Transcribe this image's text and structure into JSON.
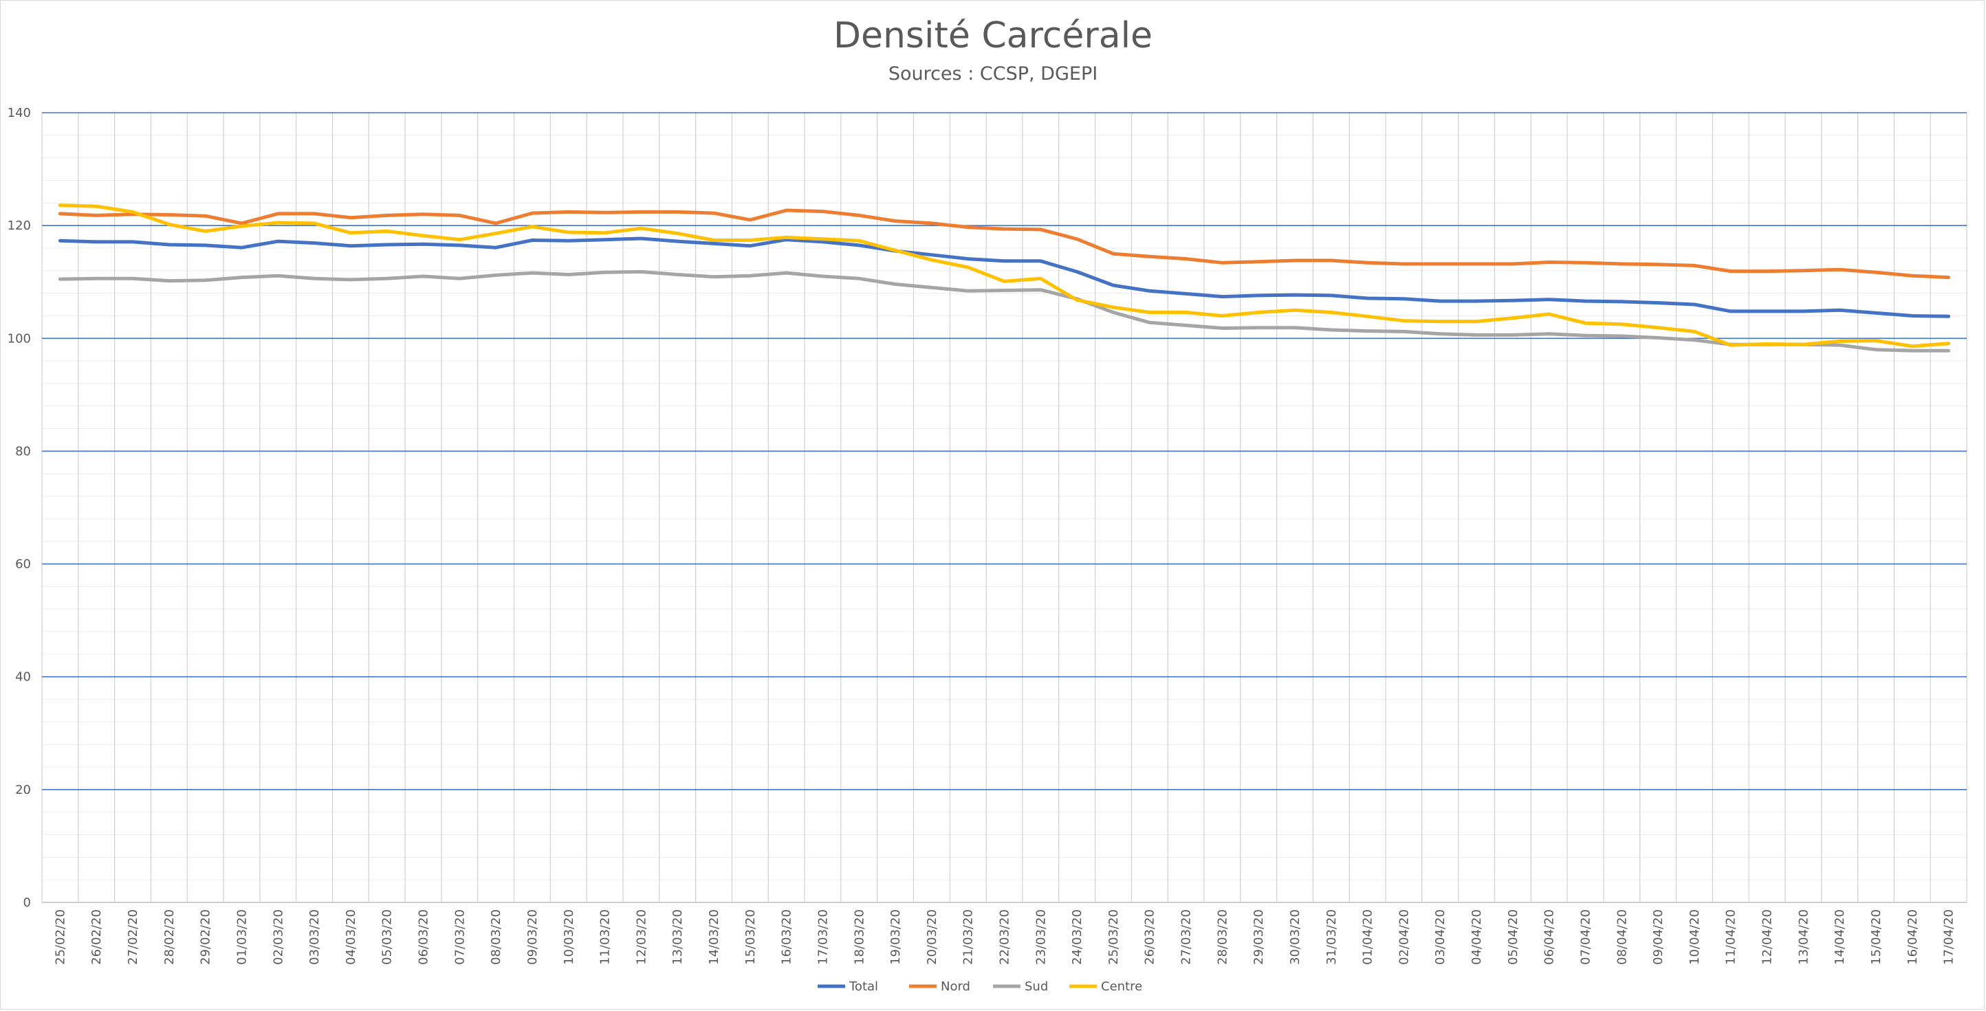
{
  "chart_data": {
    "type": "line",
    "title": "Densité Carcérale",
    "subtitle": "Sources : CCSP, DGEPI",
    "xlabel": "",
    "ylabel": "",
    "ylim": [
      0,
      140
    ],
    "ymajor": 20,
    "yminor": 4,
    "grid": true,
    "legend_position": "bottom",
    "categories": [
      "25/02/20",
      "26/02/20",
      "27/02/20",
      "28/02/20",
      "29/02/20",
      "01/03/20",
      "02/03/20",
      "03/03/20",
      "04/03/20",
      "05/03/20",
      "06/03/20",
      "07/03/20",
      "08/03/20",
      "09/03/20",
      "10/03/20",
      "11/03/20",
      "12/03/20",
      "13/03/20",
      "14/03/20",
      "15/03/20",
      "16/03/20",
      "17/03/20",
      "18/03/20",
      "19/03/20",
      "20/03/20",
      "21/03/20",
      "22/03/20",
      "23/03/20",
      "24/03/20",
      "25/03/20",
      "26/03/20",
      "27/03/20",
      "28/03/20",
      "29/03/20",
      "30/03/20",
      "31/03/20",
      "01/04/20",
      "02/04/20",
      "03/04/20",
      "04/04/20",
      "05/04/20",
      "06/04/20",
      "07/04/20",
      "08/04/20",
      "09/04/20",
      "10/04/20",
      "11/04/20",
      "12/04/20",
      "13/04/20",
      "14/04/20",
      "15/04/20",
      "16/04/20",
      "17/04/20"
    ],
    "series": [
      {
        "name": "Total",
        "color": "#4472c4",
        "values": [
          117.3,
          117.1,
          117.1,
          116.6,
          116.5,
          116.1,
          117.2,
          116.9,
          116.4,
          116.6,
          116.7,
          116.5,
          116.1,
          117.4,
          117.3,
          117.5,
          117.7,
          117.2,
          116.8,
          116.4,
          117.5,
          117.1,
          116.5,
          115.5,
          114.8,
          114.1,
          113.7,
          113.7,
          111.8,
          109.4,
          108.4,
          107.9,
          107.4,
          107.6,
          107.7,
          107.6,
          107.1,
          107.0,
          106.6,
          106.6,
          106.7,
          106.9,
          106.6,
          106.5,
          106.3,
          106.0,
          104.8,
          104.8,
          104.8,
          105.0,
          104.5,
          104.0,
          103.9
        ]
      },
      {
        "name": "Nord",
        "color": "#ed7d31",
        "values": [
          122.1,
          121.8,
          122.0,
          121.9,
          121.7,
          120.4,
          122.1,
          122.1,
          121.4,
          121.8,
          122.0,
          121.8,
          120.4,
          122.2,
          122.4,
          122.3,
          122.4,
          122.4,
          122.2,
          121.0,
          122.7,
          122.5,
          121.8,
          120.8,
          120.4,
          119.7,
          119.4,
          119.3,
          117.6,
          115.0,
          114.5,
          114.1,
          113.4,
          113.6,
          113.8,
          113.8,
          113.4,
          113.2,
          113.2,
          113.2,
          113.2,
          113.5,
          113.4,
          113.2,
          113.1,
          112.9,
          111.9,
          111.9,
          112.0,
          112.2,
          111.7,
          111.1,
          110.8
        ]
      },
      {
        "name": "Sud",
        "color": "#a5a5a5",
        "values": [
          110.5,
          110.6,
          110.6,
          110.2,
          110.3,
          110.8,
          111.1,
          110.6,
          110.4,
          110.6,
          111.0,
          110.6,
          111.2,
          111.6,
          111.3,
          111.7,
          111.8,
          111.3,
          110.9,
          111.1,
          111.6,
          111.0,
          110.6,
          109.6,
          109.0,
          108.4,
          108.5,
          108.6,
          107.0,
          104.6,
          102.8,
          102.3,
          101.8,
          101.9,
          101.9,
          101.5,
          101.3,
          101.2,
          100.8,
          100.6,
          100.6,
          100.8,
          100.5,
          100.4,
          100.1,
          99.7,
          98.9,
          98.9,
          98.9,
          98.8,
          98.0,
          97.8,
          97.8
        ]
      },
      {
        "name": "Centre",
        "color": "#ffc000",
        "values": [
          123.6,
          123.4,
          122.4,
          120.2,
          119.0,
          119.9,
          120.5,
          120.4,
          118.7,
          119.0,
          118.2,
          117.5,
          118.6,
          119.8,
          118.8,
          118.7,
          119.5,
          118.6,
          117.4,
          117.4,
          117.9,
          117.6,
          117.3,
          115.6,
          113.9,
          112.6,
          110.1,
          110.6,
          106.8,
          105.5,
          104.6,
          104.6,
          104.0,
          104.6,
          105.0,
          104.6,
          103.9,
          103.1,
          103.0,
          103.0,
          103.6,
          104.3,
          102.7,
          102.5,
          101.9,
          101.2,
          98.8,
          99.0,
          98.9,
          99.5,
          99.6,
          98.6,
          99.1
        ]
      }
    ]
  }
}
